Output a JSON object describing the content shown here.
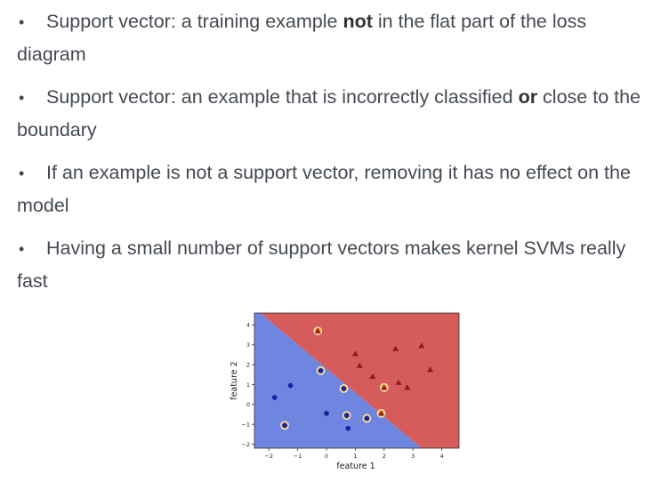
{
  "bullets": [
    {
      "pre": "Support vector: a training example ",
      "bold": "not",
      "post": " in the flat part of the loss diagram"
    },
    {
      "pre": "Support vector: an example that is incorrectly classified ",
      "bold": "or",
      "post": " close to the boundary"
    },
    {
      "pre": "If an example is not a support vector, removing it has no effect on the model",
      "bold": "",
      "post": ""
    },
    {
      "pre": "Having a small number of support vectors makes kernel SVMs really fast",
      "bold": "",
      "post": ""
    }
  ],
  "bullet_char": "•",
  "chart_data": {
    "type": "scatter",
    "title": "",
    "xlabel": "feature 1",
    "ylabel": "feature 2",
    "xlim": [
      -2.5,
      4.6
    ],
    "ylim": [
      -2.2,
      4.6
    ],
    "xticks": [
      -2,
      -1,
      0,
      1,
      2,
      3,
      4
    ],
    "yticks": [
      -2,
      -1,
      0,
      1,
      2,
      3,
      4
    ],
    "xtick_labels": [
      "−2",
      "−1",
      "0",
      "1",
      "2",
      "3",
      "4"
    ],
    "ytick_labels": [
      "−2",
      "−1",
      "0",
      "1",
      "2",
      "3",
      "4"
    ],
    "decision_boundary": {
      "x": [
        -2.3,
        3.3
      ],
      "y": [
        4.6,
        -2.2
      ]
    },
    "region_colors": {
      "class0": "#6e86e0",
      "class1": "#d65b5b"
    },
    "grid": false,
    "series": [
      {
        "marker": "circle",
        "color": "#0a22c8",
        "x": [
          -1.8,
          -1.25,
          -0.2,
          0.6,
          1.4,
          0.7,
          0.75,
          0.0,
          -1.45
        ],
        "y": [
          0.35,
          0.95,
          1.7,
          0.8,
          -0.7,
          -0.55,
          -1.2,
          -0.45,
          -1.05
        ],
        "support": [
          false,
          false,
          true,
          true,
          true,
          true,
          false,
          false,
          true
        ]
      },
      {
        "marker": "triangle",
        "color": "#b40f0f",
        "x": [
          -0.3,
          1.0,
          1.15,
          1.6,
          2.4,
          3.3,
          3.6,
          2.5,
          2.8,
          2.0,
          1.9
        ],
        "y": [
          3.7,
          2.55,
          1.95,
          1.4,
          2.8,
          2.95,
          1.75,
          1.1,
          0.85,
          0.85,
          -0.45
        ],
        "support": [
          true,
          false,
          false,
          false,
          false,
          false,
          false,
          false,
          false,
          true,
          true
        ]
      }
    ]
  }
}
